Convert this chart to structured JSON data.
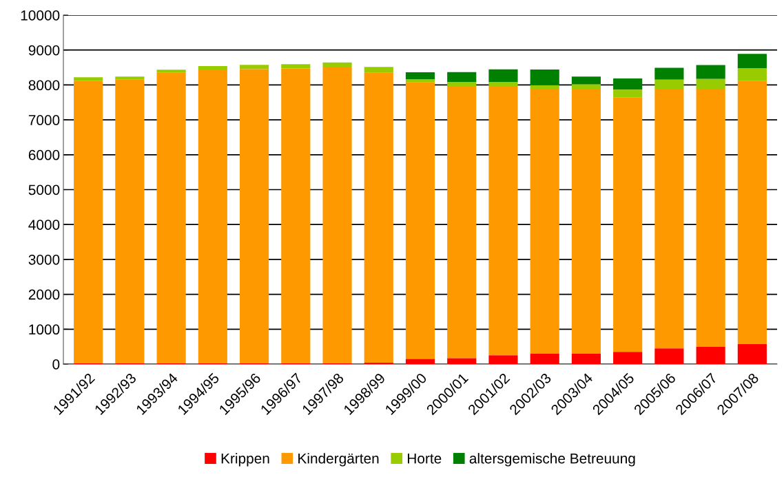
{
  "chart_data": {
    "type": "bar",
    "stacked": true,
    "categories": [
      "1991/92",
      "1992/93",
      "1993/94",
      "1994/95",
      "1995/96",
      "1996/97",
      "1997/98",
      "1998/99",
      "1999/00",
      "2000/01",
      "2001/02",
      "2002/03",
      "2003/04",
      "2004/05",
      "2005/06",
      "2006/07",
      "2007/08"
    ],
    "series": [
      {
        "name": "Krippen",
        "color": "#ff0000",
        "values": [
          20,
          20,
          20,
          20,
          20,
          20,
          20,
          40,
          150,
          170,
          250,
          300,
          300,
          350,
          450,
          500,
          570
        ]
      },
      {
        "name": "Kindergärten",
        "color": "#ff9900",
        "values": [
          8100,
          8130,
          8330,
          8400,
          8430,
          8450,
          8480,
          8310,
          7920,
          7780,
          7700,
          7570,
          7570,
          7290,
          7420,
          7370,
          7550
        ]
      },
      {
        "name": "Horte",
        "color": "#99cc00",
        "values": [
          100,
          90,
          85,
          120,
          125,
          125,
          145,
          165,
          95,
          125,
          125,
          125,
          150,
          225,
          280,
          300,
          350
        ]
      },
      {
        "name": "altersgemische Betreuung",
        "color": "#008000",
        "values": [
          0,
          0,
          0,
          0,
          0,
          0,
          0,
          0,
          200,
          295,
          370,
          445,
          220,
          320,
          340,
          400,
          420
        ]
      }
    ],
    "ylim": [
      0,
      10000
    ],
    "yticks": [
      0,
      1000,
      2000,
      3000,
      4000,
      5000,
      6000,
      7000,
      8000,
      9000,
      10000
    ],
    "grid": "y",
    "legend": "bottom"
  }
}
